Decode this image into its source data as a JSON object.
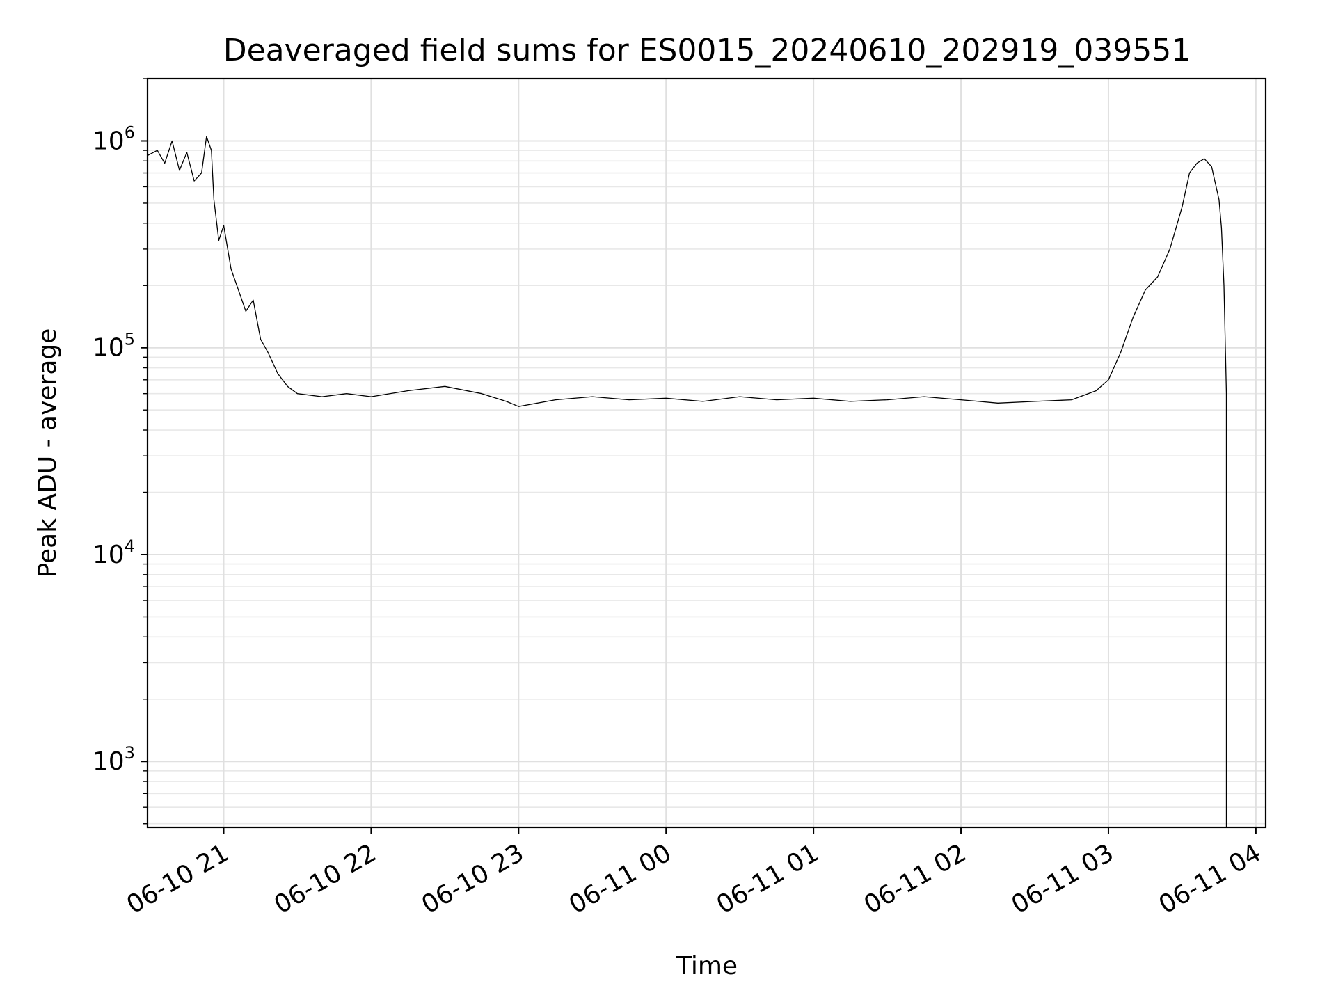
{
  "chart_data": {
    "type": "line",
    "title": "Deaveraged field sums for ES0015_20240610_202919_039551",
    "xlabel": "Time",
    "ylabel": "Peak ADU - average",
    "yscale": "log",
    "ylim": [
      480,
      2000000
    ],
    "xlim": [
      "2024-06-10 20:29",
      "2024-06-11 04:04"
    ],
    "x_ticks": [
      {
        "t": "2024-06-10 21:00",
        "label": "06-10 21"
      },
      {
        "t": "2024-06-10 22:00",
        "label": "06-10 22"
      },
      {
        "t": "2024-06-10 23:00",
        "label": "06-10 23"
      },
      {
        "t": "2024-06-11 00:00",
        "label": "06-11 00"
      },
      {
        "t": "2024-06-11 01:00",
        "label": "06-11 01"
      },
      {
        "t": "2024-06-11 02:00",
        "label": "06-11 02"
      },
      {
        "t": "2024-06-11 03:00",
        "label": "06-11 03"
      },
      {
        "t": "2024-06-11 04:00",
        "label": "06-11 04"
      }
    ],
    "y_ticks": [
      {
        "value": 1000,
        "base": "10",
        "exp": "3"
      },
      {
        "value": 10000,
        "base": "10",
        "exp": "4"
      },
      {
        "value": 100000,
        "base": "10",
        "exp": "5"
      },
      {
        "value": 1000000,
        "base": "10",
        "exp": "6"
      }
    ],
    "grid": true,
    "series": [
      {
        "color": "#000000",
        "points": [
          [
            "2024-06-10 20:29",
            850000
          ],
          [
            "2024-06-10 20:33",
            900000
          ],
          [
            "2024-06-10 20:36",
            780000
          ],
          [
            "2024-06-10 20:39",
            1000000
          ],
          [
            "2024-06-10 20:42",
            720000
          ],
          [
            "2024-06-10 20:45",
            880000
          ],
          [
            "2024-06-10 20:48",
            640000
          ],
          [
            "2024-06-10 20:51",
            700000
          ],
          [
            "2024-06-10 20:53",
            1050000
          ],
          [
            "2024-06-10 20:55",
            900000
          ],
          [
            "2024-06-10 20:56",
            520000
          ],
          [
            "2024-06-10 20:58",
            330000
          ],
          [
            "2024-06-10 21:00",
            390000
          ],
          [
            "2024-06-10 21:03",
            240000
          ],
          [
            "2024-06-10 21:06",
            190000
          ],
          [
            "2024-06-10 21:09",
            150000
          ],
          [
            "2024-06-10 21:12",
            170000
          ],
          [
            "2024-06-10 21:15",
            110000
          ],
          [
            "2024-06-10 21:18",
            95000
          ],
          [
            "2024-06-10 21:22",
            75000
          ],
          [
            "2024-06-10 21:26",
            65000
          ],
          [
            "2024-06-10 21:30",
            60000
          ],
          [
            "2024-06-10 21:40",
            58000
          ],
          [
            "2024-06-10 21:50",
            60000
          ],
          [
            "2024-06-10 22:00",
            58000
          ],
          [
            "2024-06-10 22:15",
            62000
          ],
          [
            "2024-06-10 22:30",
            65000
          ],
          [
            "2024-06-10 22:45",
            60000
          ],
          [
            "2024-06-10 22:55",
            55000
          ],
          [
            "2024-06-10 23:00",
            52000
          ],
          [
            "2024-06-10 23:15",
            56000
          ],
          [
            "2024-06-10 23:30",
            58000
          ],
          [
            "2024-06-10 23:45",
            56000
          ],
          [
            "2024-06-11 00:00",
            57000
          ],
          [
            "2024-06-11 00:15",
            55000
          ],
          [
            "2024-06-11 00:30",
            58000
          ],
          [
            "2024-06-11 00:45",
            56000
          ],
          [
            "2024-06-11 01:00",
            57000
          ],
          [
            "2024-06-11 01:15",
            55000
          ],
          [
            "2024-06-11 01:30",
            56000
          ],
          [
            "2024-06-11 01:45",
            58000
          ],
          [
            "2024-06-11 02:00",
            56000
          ],
          [
            "2024-06-11 02:15",
            54000
          ],
          [
            "2024-06-11 02:30",
            55000
          ],
          [
            "2024-06-11 02:45",
            56000
          ],
          [
            "2024-06-11 02:55",
            62000
          ],
          [
            "2024-06-11 03:00",
            70000
          ],
          [
            "2024-06-11 03:05",
            95000
          ],
          [
            "2024-06-11 03:10",
            140000
          ],
          [
            "2024-06-11 03:15",
            190000
          ],
          [
            "2024-06-11 03:20",
            220000
          ],
          [
            "2024-06-11 03:25",
            300000
          ],
          [
            "2024-06-11 03:30",
            480000
          ],
          [
            "2024-06-11 03:33",
            700000
          ],
          [
            "2024-06-11 03:36",
            780000
          ],
          [
            "2024-06-11 03:39",
            820000
          ],
          [
            "2024-06-11 03:42",
            750000
          ],
          [
            "2024-06-11 03:45",
            520000
          ],
          [
            "2024-06-11 03:46",
            380000
          ],
          [
            "2024-06-11 03:47",
            200000
          ],
          [
            "2024-06-11 03:48",
            60000
          ],
          [
            "2024-06-11 03:48",
            480
          ]
        ]
      }
    ]
  }
}
